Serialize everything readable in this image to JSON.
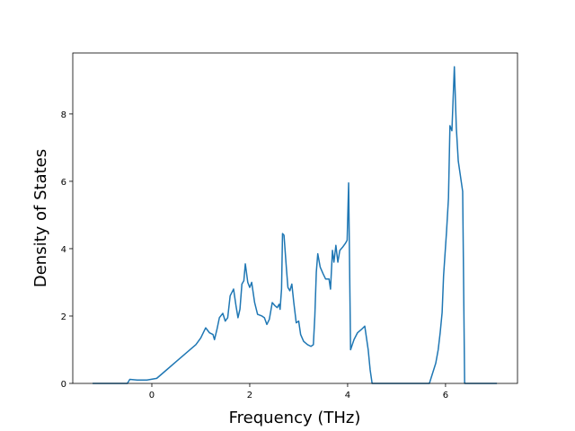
{
  "chart_data": {
    "type": "line",
    "x_label": "Frequency (THz)",
    "y_label": "Density of States",
    "xlim": [
      -1.615,
      7.47
    ],
    "ylim": [
      0,
      9.81
    ],
    "xticks": [
      0,
      2,
      4,
      6
    ],
    "yticks": [
      0,
      2,
      4,
      6,
      8
    ],
    "series": [
      {
        "color": "#1f77b4",
        "x": [
          -1.21,
          -0.5,
          -0.45,
          -0.3,
          -0.1,
          0.1,
          0.3,
          0.5,
          0.7,
          0.9,
          1.0,
          1.1,
          1.18,
          1.25,
          1.28,
          1.33,
          1.38,
          1.45,
          1.5,
          1.55,
          1.6,
          1.67,
          1.72,
          1.76,
          1.8,
          1.84,
          1.88,
          1.91,
          1.96,
          2.0,
          2.04,
          2.1,
          2.16,
          2.25,
          2.3,
          2.35,
          2.4,
          2.46,
          2.52,
          2.56,
          2.6,
          2.62,
          2.65,
          2.67,
          2.7,
          2.75,
          2.78,
          2.82,
          2.86,
          2.9,
          2.95,
          3.0,
          3.04,
          3.1,
          3.18,
          3.25,
          3.3,
          3.33,
          3.36,
          3.39,
          3.44,
          3.5,
          3.55,
          3.62,
          3.65,
          3.69,
          3.72,
          3.76,
          3.8,
          3.84,
          3.9,
          3.95,
          3.99,
          4.02,
          4.06,
          4.13,
          4.2,
          4.28,
          4.35,
          4.42,
          4.46,
          4.5,
          5.67,
          5.8,
          5.85,
          5.89,
          5.93,
          5.96,
          6.02,
          6.06,
          6.09,
          6.13,
          6.18,
          6.22,
          6.26,
          6.35,
          6.39,
          7.05
        ],
        "values": [
          0,
          0,
          0.12,
          0.1,
          0.1,
          0.15,
          0.4,
          0.65,
          0.9,
          1.15,
          1.35,
          1.65,
          1.5,
          1.45,
          1.3,
          1.6,
          1.95,
          2.08,
          1.85,
          1.95,
          2.6,
          2.8,
          2.3,
          1.95,
          2.2,
          2.95,
          3.05,
          3.55,
          3.0,
          2.85,
          3.0,
          2.4,
          2.05,
          2.0,
          1.95,
          1.75,
          1.9,
          2.4,
          2.3,
          2.25,
          2.35,
          2.2,
          2.8,
          4.45,
          4.4,
          3.4,
          2.85,
          2.75,
          2.95,
          2.4,
          1.8,
          1.85,
          1.45,
          1.25,
          1.15,
          1.1,
          1.15,
          2.0,
          3.3,
          3.85,
          3.45,
          3.25,
          3.1,
          3.1,
          2.8,
          3.95,
          3.6,
          4.1,
          3.6,
          3.95,
          4.05,
          4.15,
          4.25,
          5.95,
          1.0,
          1.3,
          1.5,
          1.6,
          1.7,
          1.0,
          0.4,
          0,
          0,
          0.6,
          1.0,
          1.5,
          2.1,
          3.2,
          4.5,
          5.5,
          7.65,
          7.5,
          9.4,
          7.6,
          6.6,
          5.7,
          0,
          0
        ]
      }
    ]
  }
}
